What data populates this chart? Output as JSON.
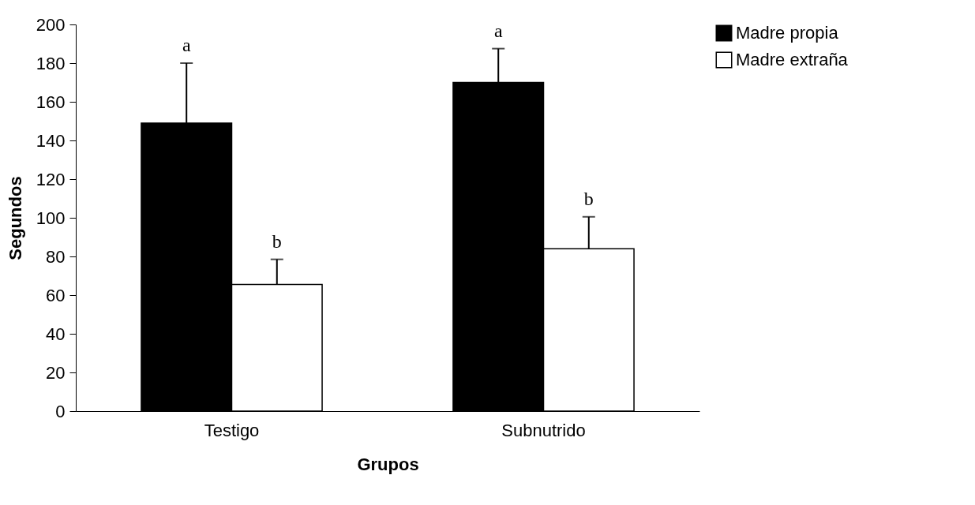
{
  "chart_data": {
    "type": "bar",
    "xlabel": "Grupos",
    "ylabel": "Segundos",
    "categories": [
      "Testigo",
      "Subnutrido"
    ],
    "series": [
      {
        "name": "Madre propia",
        "color": "#000000",
        "values": [
          149,
          170
        ],
        "errors": [
          31,
          17.5
        ]
      },
      {
        "name": "Madre extraña",
        "color": "#ffffff",
        "values": [
          65.5,
          84
        ],
        "errors": [
          13,
          16.5
        ]
      }
    ],
    "ylim": [
      0,
      200
    ],
    "yticks": [
      0,
      20,
      40,
      60,
      80,
      100,
      120,
      140,
      160,
      180,
      200
    ],
    "grid": false,
    "legend": "right",
    "annotations": [
      "a",
      "b",
      "a",
      "b"
    ]
  }
}
